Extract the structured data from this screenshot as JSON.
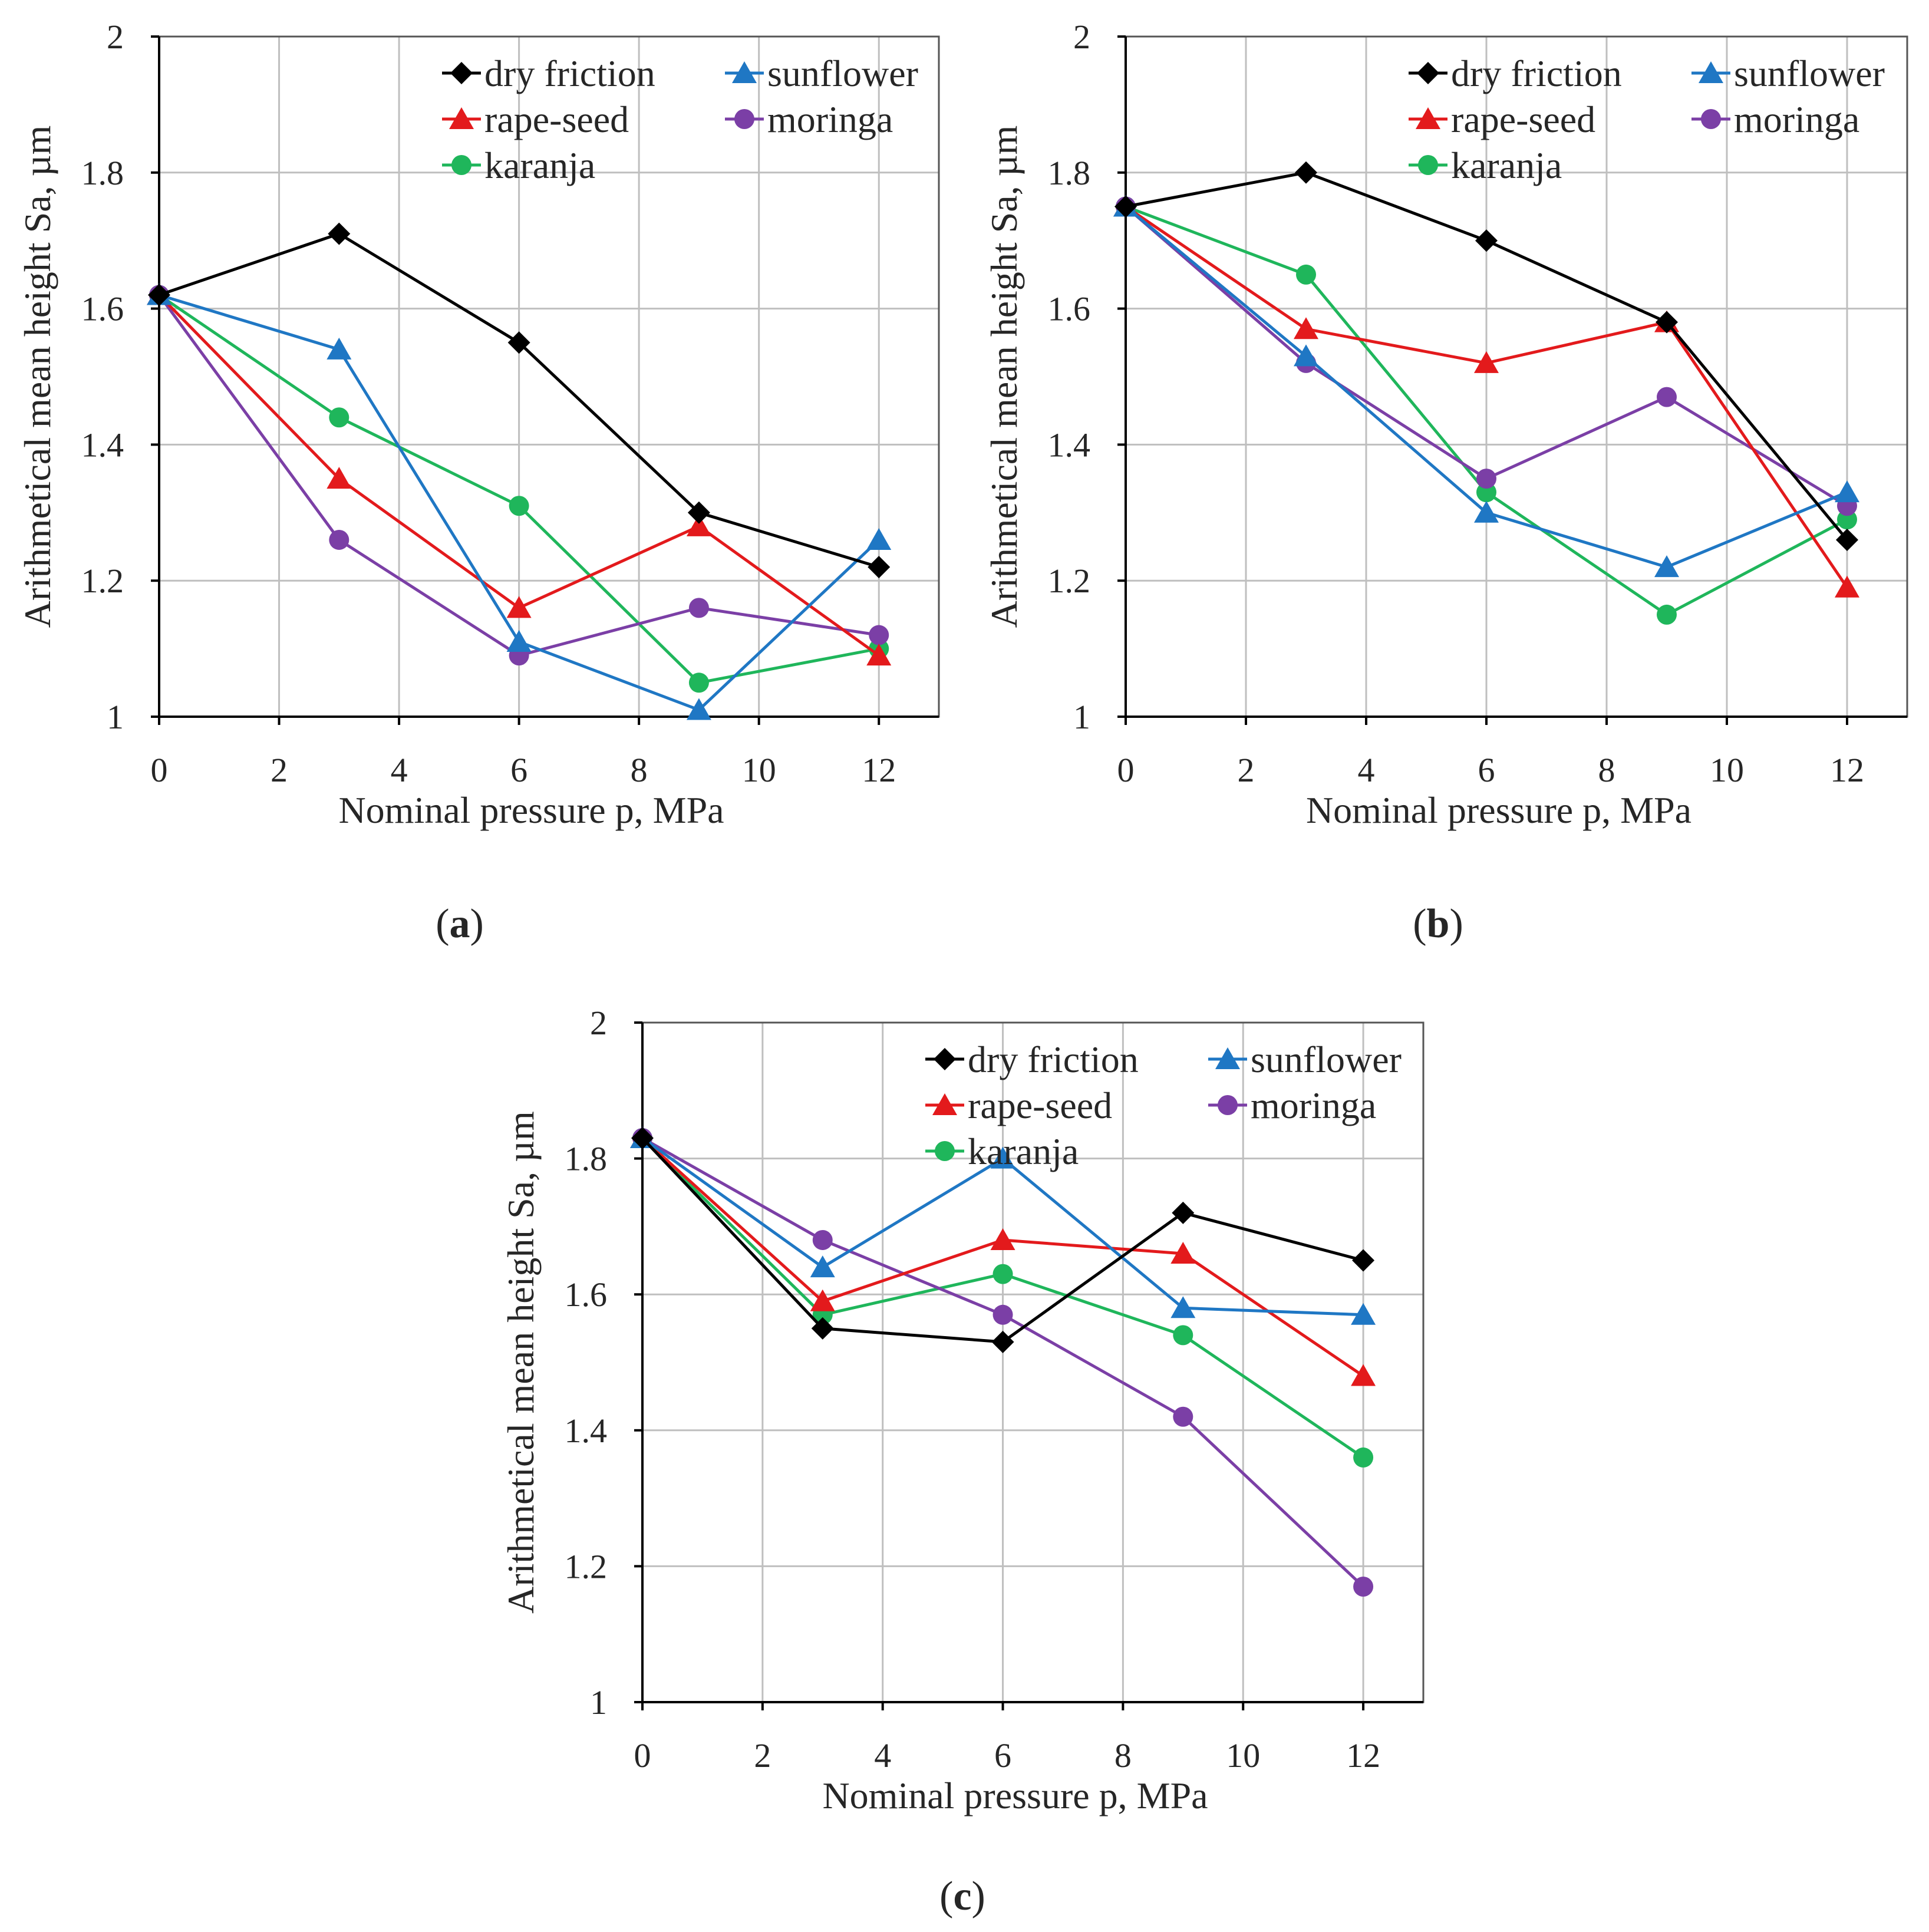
{
  "figure": {
    "series_styles": [
      {
        "name": "dry friction",
        "color": "#000000",
        "marker": "diamond"
      },
      {
        "name": "sunflower",
        "color": "#1f77c4",
        "marker": "triangle"
      },
      {
        "name": "rape-seed",
        "color": "#e31a1c",
        "marker": "triangle"
      },
      {
        "name": "moringa",
        "color": "#7b3fa6",
        "marker": "circle"
      },
      {
        "name": "karanja",
        "color": "#1fb65b",
        "marker": "circle"
      }
    ],
    "axis_color": "#000000",
    "grid_color": "#bfbfbf"
  },
  "chart_data": [
    {
      "type": "line",
      "panel_label": "a",
      "xlabel": "Nominal pressure p, MPa",
      "ylabel": "Arithmetical mean height Sa, µm",
      "xlim": [
        0,
        13
      ],
      "ylim": [
        1,
        2
      ],
      "xticks": [
        0,
        2,
        4,
        6,
        8,
        10,
        12
      ],
      "yticks": [
        1,
        1.2,
        1.4,
        1.6,
        1.8,
        2
      ],
      "grid": true,
      "legend_position": "top-right",
      "x": [
        0,
        3,
        6,
        9,
        12
      ],
      "series": [
        {
          "name": "dry friction",
          "values": [
            1.62,
            1.71,
            1.55,
            1.3,
            1.22
          ]
        },
        {
          "name": "sunflower",
          "values": [
            1.62,
            1.54,
            1.11,
            1.01,
            1.26
          ]
        },
        {
          "name": "rape-seed",
          "values": [
            1.62,
            1.35,
            1.16,
            1.28,
            1.09
          ]
        },
        {
          "name": "moringa",
          "values": [
            1.62,
            1.26,
            1.09,
            1.16,
            1.12
          ]
        },
        {
          "name": "karanja",
          "values": [
            1.62,
            1.44,
            1.31,
            1.05,
            1.1
          ]
        }
      ]
    },
    {
      "type": "line",
      "panel_label": "b",
      "xlabel": "Nominal pressure p, MPa",
      "ylabel": "Arithmetical mean height Sa, µm",
      "xlim": [
        0,
        13
      ],
      "ylim": [
        1,
        2
      ],
      "xticks": [
        0,
        2,
        4,
        6,
        8,
        10,
        12
      ],
      "yticks": [
        1,
        1.2,
        1.4,
        1.6,
        1.8,
        2
      ],
      "grid": true,
      "legend_position": "top-right",
      "x": [
        0,
        3,
        6,
        9,
        12
      ],
      "series": [
        {
          "name": "dry friction",
          "values": [
            1.75,
            1.8,
            1.7,
            1.58,
            1.26
          ]
        },
        {
          "name": "sunflower",
          "values": [
            1.75,
            1.53,
            1.3,
            1.22,
            1.33
          ]
        },
        {
          "name": "rape-seed",
          "values": [
            1.75,
            1.57,
            1.52,
            1.58,
            1.19
          ]
        },
        {
          "name": "moringa",
          "values": [
            1.75,
            1.52,
            1.35,
            1.47,
            1.31
          ]
        },
        {
          "name": "karanja",
          "values": [
            1.75,
            1.65,
            1.33,
            1.15,
            1.29
          ]
        }
      ]
    },
    {
      "type": "line",
      "panel_label": "c",
      "xlabel": "Nominal pressure p, MPa",
      "ylabel": "Arithmetical mean height Sa, µm",
      "xlim": [
        0,
        13
      ],
      "ylim": [
        1,
        2
      ],
      "xticks": [
        0,
        2,
        4,
        6,
        8,
        10,
        12
      ],
      "yticks": [
        1,
        1.2,
        1.4,
        1.6,
        1.8,
        2
      ],
      "grid": true,
      "legend_position": "top-right",
      "x": [
        0,
        3,
        6,
        9,
        12
      ],
      "series": [
        {
          "name": "dry friction",
          "values": [
            1.83,
            1.55,
            1.53,
            1.72,
            1.65
          ]
        },
        {
          "name": "sunflower",
          "values": [
            1.83,
            1.64,
            1.8,
            1.58,
            1.57
          ]
        },
        {
          "name": "rape-seed",
          "values": [
            1.83,
            1.59,
            1.68,
            1.66,
            1.48
          ]
        },
        {
          "name": "moringa",
          "values": [
            1.83,
            1.68,
            1.57,
            1.42,
            1.17
          ]
        },
        {
          "name": "karanja",
          "values": [
            1.83,
            1.57,
            1.63,
            1.54,
            1.36
          ]
        }
      ]
    }
  ]
}
